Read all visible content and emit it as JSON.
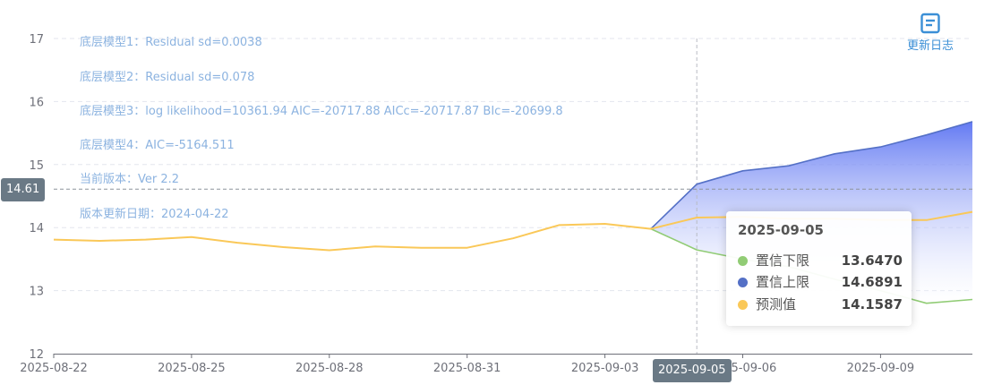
{
  "chart_data": {
    "type": "line",
    "x": [
      "2025-08-22",
      "2025-08-23",
      "2025-08-24",
      "2025-08-25",
      "2025-08-26",
      "2025-08-27",
      "2025-08-28",
      "2025-08-29",
      "2025-08-30",
      "2025-08-31",
      "2025-09-01",
      "2025-09-02",
      "2025-09-03",
      "2025-09-04",
      "2025-09-05",
      "2025-09-06",
      "2025-09-07",
      "2025-09-08",
      "2025-09-09",
      "2025-09-10",
      "2025-09-11"
    ],
    "x_tick_labels": [
      "2025-08-22",
      "2025-08-25",
      "2025-08-28",
      "2025-08-31",
      "2025-09-03",
      "2025-09-06",
      "2025-09-09"
    ],
    "ylim": [
      12,
      17
    ],
    "y_ticks": [
      12,
      13,
      14,
      15,
      16,
      17
    ],
    "series": [
      {
        "name": "置信下限",
        "color": "#91cc75",
        "values": [
          null,
          null,
          null,
          null,
          null,
          null,
          null,
          null,
          null,
          null,
          null,
          null,
          null,
          13.98,
          13.647,
          13.5,
          13.38,
          13.18,
          13.0,
          12.8,
          12.86
        ]
      },
      {
        "name": "置信上限",
        "color": "#5470c6",
        "values": [
          null,
          null,
          null,
          null,
          null,
          null,
          null,
          null,
          null,
          null,
          null,
          null,
          null,
          13.98,
          14.6891,
          14.9,
          14.98,
          15.17,
          15.28,
          15.47,
          15.68
        ]
      },
      {
        "name": "预测值",
        "color": "#fac858",
        "values": [
          13.81,
          13.79,
          13.81,
          13.85,
          13.76,
          13.69,
          13.64,
          13.7,
          13.68,
          13.68,
          13.83,
          14.04,
          14.06,
          13.98,
          14.1587,
          14.17,
          14.14,
          14.14,
          14.12,
          14.12,
          14.25
        ]
      }
    ],
    "band_fill": [
      "#5b73f2",
      "#ffffff"
    ],
    "grid": true,
    "legend": "none"
  },
  "model_info": [
    "底层模型1：Residual sd=0.0038",
    "底层模型2：Residual sd=0.078",
    "底层模型3：log likelihood=10361.94 AIC=-20717.88 AICc=-20717.87 BIc=-20699.8",
    "底层模型4：AIC=-5164.511",
    "当前版本：Ver 2.2",
    "版本更新日期：2024-04-22"
  ],
  "toolbox": {
    "update_log_label": "更新日志",
    "icon": "doc-icon"
  },
  "crosshair": {
    "y_value": "14.61",
    "x_value": "2025-09-05",
    "x_index": 14,
    "y_number": 14.61
  },
  "tooltip": {
    "title": "2025-09-05",
    "rows": [
      {
        "name": "置信下限",
        "value": "13.6470",
        "color": "#91cc75"
      },
      {
        "name": "置信上限",
        "value": "14.6891",
        "color": "#5470c6"
      },
      {
        "name": "预测值",
        "value": "14.1587",
        "color": "#fac858"
      }
    ]
  }
}
